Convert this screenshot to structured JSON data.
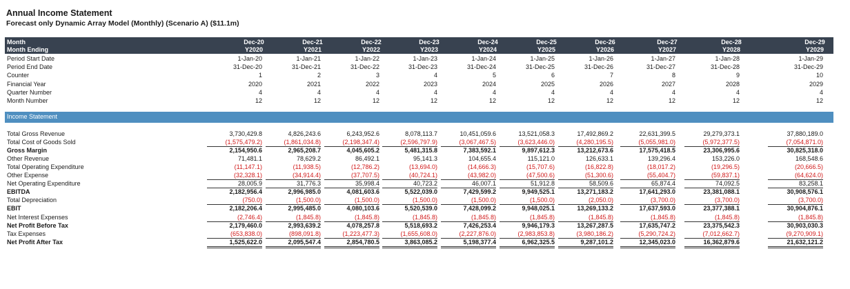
{
  "title": "Annual Income Statement",
  "subtitle": "Forecast only Dynamic Array Model (Monthly) (Scenario A) ($11.1m)",
  "header": {
    "month_label": "Month",
    "month_ending_label": "Month Ending",
    "months": [
      "Dec-20",
      "Dec-21",
      "Dec-22",
      "Dec-23",
      "Dec-24",
      "Dec-25",
      "Dec-26",
      "Dec-27",
      "Dec-28",
      "Dec-29"
    ],
    "years": [
      "Y2020",
      "Y2021",
      "Y2022",
      "Y2023",
      "Y2024",
      "Y2025",
      "Y2026",
      "Y2027",
      "Y2028",
      "Y2029"
    ]
  },
  "meta_rows": [
    {
      "label": "Period Start Date",
      "values": [
        "1-Jan-20",
        "1-Jan-21",
        "1-Jan-22",
        "1-Jan-23",
        "1-Jan-24",
        "1-Jan-25",
        "1-Jan-26",
        "1-Jan-27",
        "1-Jan-28",
        "1-Jan-29"
      ]
    },
    {
      "label": "Period End Date",
      "values": [
        "31-Dec-20",
        "31-Dec-21",
        "31-Dec-22",
        "31-Dec-23",
        "31-Dec-24",
        "31-Dec-25",
        "31-Dec-26",
        "31-Dec-27",
        "31-Dec-28",
        "31-Dec-29"
      ]
    },
    {
      "label": "Counter",
      "values": [
        "1",
        "2",
        "3",
        "4",
        "5",
        "6",
        "7",
        "8",
        "9",
        "10"
      ]
    },
    {
      "label": "Financial Year",
      "values": [
        "2020",
        "2021",
        "2022",
        "2023",
        "2024",
        "2025",
        "2026",
        "2027",
        "2028",
        "2029"
      ]
    },
    {
      "label": "Quarter Number",
      "values": [
        "4",
        "4",
        "4",
        "4",
        "4",
        "4",
        "4",
        "4",
        "4",
        "4"
      ]
    },
    {
      "label": "Month Number",
      "values": [
        "12",
        "12",
        "12",
        "12",
        "12",
        "12",
        "12",
        "12",
        "12",
        "12"
      ]
    }
  ],
  "section_title": "Income Statement",
  "income_rows": [
    {
      "label": "Total Gross Revenue",
      "style": "",
      "neg": false,
      "values": [
        "3,730,429.8",
        "4,826,243.6",
        "6,243,952.6",
        "8,078,113.7",
        "10,451,059.6",
        "13,521,058.3",
        "17,492,869.2",
        "22,631,399.5",
        "29,279,373.1",
        "37,880,189.0"
      ]
    },
    {
      "label": "Total Cost of Goods Sold",
      "style": "ul",
      "neg": true,
      "values": [
        "1,575,479.2",
        "1,861,034.8",
        "2,198,347.4",
        "2,596,797.9",
        "3,067,467.5",
        "3,623,446.0",
        "4,280,195.5",
        "5,055,981.0",
        "5,972,377.5",
        "7,054,871.0"
      ]
    },
    {
      "label": "Gross Margin",
      "style": "bold",
      "neg": false,
      "values": [
        "2,154,950.6",
        "2,965,208.7",
        "4,045,605.2",
        "5,481,315.8",
        "7,383,592.1",
        "9,897,612.3",
        "13,212,673.6",
        "17,575,418.5",
        "23,306,995.6",
        "30,825,318.0"
      ]
    },
    {
      "label": "Other Revenue",
      "style": "",
      "neg": false,
      "values": [
        "71,481.1",
        "78,629.2",
        "86,492.1",
        "95,141.3",
        "104,655.4",
        "115,121.0",
        "126,633.1",
        "139,296.4",
        "153,226.0",
        "168,548.6"
      ]
    },
    {
      "label": "Total Operating Expenditure",
      "style": "",
      "neg": true,
      "values": [
        "11,147.1",
        "11,938.5",
        "12,786.2",
        "13,694.0",
        "14,666.3",
        "15,707.6",
        "16,822.8",
        "18,017.2",
        "19,296.5",
        "20,666.5"
      ]
    },
    {
      "label": "Other Expense",
      "style": "ul",
      "neg": true,
      "values": [
        "32,328.1",
        "34,914.4",
        "37,707.5",
        "40,724.1",
        "43,982.0",
        "47,500.6",
        "51,300.6",
        "55,404.7",
        "59,837.1",
        "64,624.0"
      ]
    },
    {
      "label": "Net Operating Expenditure",
      "style": "ul",
      "neg": false,
      "values": [
        "28,005.9",
        "31,776.3",
        "35,998.4",
        "40,723.2",
        "46,007.1",
        "51,912.8",
        "58,509.6",
        "65,874.4",
        "74,092.5",
        "83,258.1"
      ]
    },
    {
      "label": "EBITDA",
      "style": "bold",
      "neg": false,
      "values": [
        "2,182,956.4",
        "2,996,985.0",
        "4,081,603.6",
        "5,522,039.0",
        "7,429,599.2",
        "9,949,525.1",
        "13,271,183.2",
        "17,641,293.0",
        "23,381,088.1",
        "30,908,576.1"
      ]
    },
    {
      "label": "Total Depreciation",
      "style": "ul",
      "neg": true,
      "values": [
        "750.0",
        "1,500.0",
        "1,500.0",
        "1,500.0",
        "1,500.0",
        "1,500.0",
        "2,050.0",
        "3,700.0",
        "3,700.0",
        "3,700.0"
      ]
    },
    {
      "label": "EBIT",
      "style": "bold",
      "neg": false,
      "values": [
        "2,182,206.4",
        "2,995,485.0",
        "4,080,103.6",
        "5,520,539.0",
        "7,428,099.2",
        "9,948,025.1",
        "13,269,133.2",
        "17,637,593.0",
        "23,377,388.1",
        "30,904,876.1"
      ]
    },
    {
      "label": "Net Interest Expenses",
      "style": "ul",
      "neg": true,
      "values": [
        "2,746.4",
        "1,845.8",
        "1,845.8",
        "1,845.8",
        "1,845.8",
        "1,845.8",
        "1,845.8",
        "1,845.8",
        "1,845.8",
        "1,845.8"
      ]
    },
    {
      "label": "Net Profit Before Tax",
      "style": "bold",
      "neg": false,
      "values": [
        "2,179,460.0",
        "2,993,639.2",
        "4,078,257.8",
        "5,518,693.2",
        "7,426,253.4",
        "9,946,179.3",
        "13,267,287.5",
        "17,635,747.2",
        "23,375,542.3",
        "30,903,030.3"
      ]
    },
    {
      "label": "Tax Expenses",
      "style": "ul",
      "neg": true,
      "values": [
        "653,838.0",
        "898,091.8",
        "1,223,477.3",
        "1,655,608.0",
        "2,227,876.0",
        "2,983,853.8",
        "3,980,186.2",
        "5,290,724.2",
        "7,012,662.7",
        "9,270,909.1"
      ]
    },
    {
      "label": "Net Profit After Tax",
      "style": "bold dbl",
      "neg": false,
      "values": [
        "1,525,622.0",
        "2,095,547.4",
        "2,854,780.5",
        "3,863,085.2",
        "5,198,377.4",
        "6,962,325.5",
        "9,287,101.2",
        "12,345,023.0",
        "16,362,879.6",
        "21,632,121.2"
      ]
    }
  ]
}
